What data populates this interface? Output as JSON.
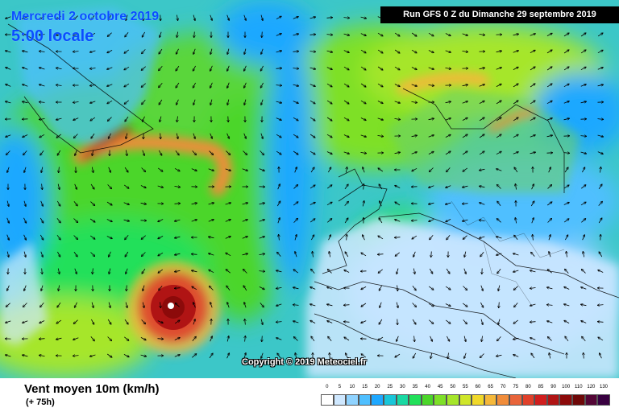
{
  "map": {
    "valid_date": "Mercredi 2 octobre 2019",
    "valid_time": "5:00 locale",
    "run_info": "Run GFS 0 Z du Dimanche 29 septembre 2019",
    "copyright": "Copyright © 2019 Meteociel.fr",
    "variable": "Vent moyen 10m (km/h)",
    "lead_time": "(+ 75h)",
    "region": "North Atlantic / Europe",
    "features": [
      "hurricane-vortex-azores",
      "jet-band-greenland",
      "wind-arrows-field"
    ]
  },
  "legend": {
    "thresholds": [
      "0",
      "5",
      "10",
      "15",
      "20",
      "25",
      "30",
      "35",
      "40",
      "45",
      "50",
      "55",
      "60",
      "65",
      "70",
      "75",
      "80",
      "85",
      "90",
      "100",
      "110",
      "120",
      "130"
    ],
    "colors": [
      "#ffffff",
      "#cfe8ff",
      "#8fd3ff",
      "#4fbfff",
      "#1fa8ff",
      "#19c6d9",
      "#19d9a3",
      "#22e05a",
      "#4cd62a",
      "#7ee028",
      "#a6e62a",
      "#cfe62a",
      "#f0d82a",
      "#f5b83a",
      "#f08c3a",
      "#e8643a",
      "#e0402a",
      "#d01e1e",
      "#b01414",
      "#8c0a0a",
      "#6e0808",
      "#540636",
      "#380040"
    ]
  }
}
